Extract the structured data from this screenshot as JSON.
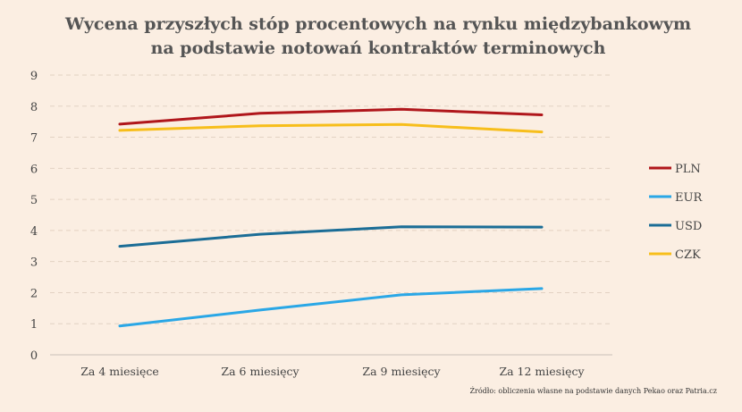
{
  "chart_data": {
    "type": "line",
    "title": "Wycena przyszłych stóp procentowych na rynku międzybankowym",
    "subtitle": "na podstawie notowań kontraktów terminowych",
    "categories": [
      "Za 4 miesięce",
      "Za 6 miesięcy",
      "Za 9 miesięcy",
      "Za 12 miesięcy"
    ],
    "ylim": [
      0,
      9
    ],
    "yticks": [
      0,
      1,
      2,
      3,
      4,
      5,
      6,
      7,
      8,
      9
    ],
    "grid": true,
    "legend_position": "right",
    "series": [
      {
        "name": "PLN",
        "color": "#b0161b",
        "values": [
          7.42,
          7.77,
          7.9,
          7.72
        ]
      },
      {
        "name": "EUR",
        "color": "#2aa7e6",
        "values": [
          0.93,
          1.44,
          1.93,
          2.13
        ]
      },
      {
        "name": "USD",
        "color": "#1b6d96",
        "values": [
          3.49,
          3.88,
          4.12,
          4.11
        ]
      },
      {
        "name": "CZK",
        "color": "#f7be1b",
        "values": [
          7.22,
          7.37,
          7.41,
          7.17
        ]
      }
    ],
    "source": "Źródło: obliczenia własne na podstawie danych Pekao oraz Patria.cz"
  }
}
